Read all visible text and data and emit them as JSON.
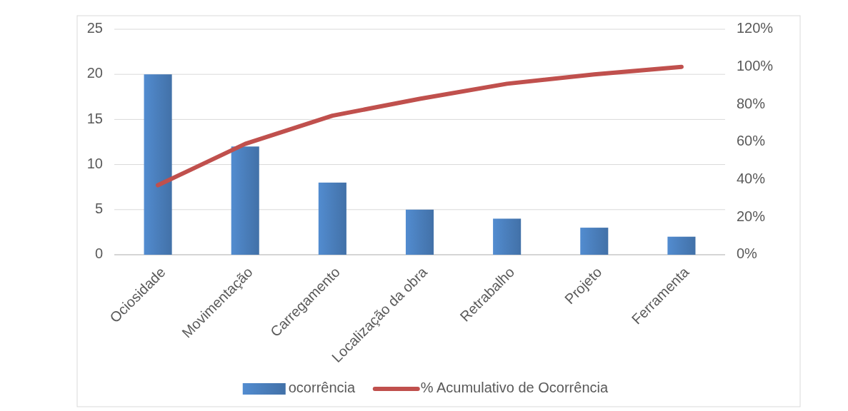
{
  "chart_data": {
    "type": "bar",
    "categories": [
      "Ociosidade",
      "Movimentação",
      "Carregamento",
      "Localização da obra",
      "Retrabalho",
      "Projeto",
      "Ferramenta"
    ],
    "series": [
      {
        "name": "ocorrência",
        "color": "#4a7ebb",
        "values": [
          20,
          12,
          8,
          5,
          4,
          3,
          2
        ]
      },
      {
        "name": "% Acumulativo de Ocorrência",
        "type": "line",
        "axis": "y2",
        "color": "#c0504d",
        "values": [
          37,
          59,
          74,
          83,
          91,
          96,
          100
        ]
      }
    ],
    "ylim": [
      0,
      25
    ],
    "yticks": [
      0,
      5,
      10,
      15,
      20,
      25
    ],
    "y2lim": [
      0,
      120
    ],
    "y2ticks": [
      {
        "value": 0,
        "label": "0%"
      },
      {
        "value": 20,
        "label": "20%"
      },
      {
        "value": 40,
        "label": "40%"
      },
      {
        "value": 60,
        "label": "60%"
      },
      {
        "value": 80,
        "label": "80%"
      },
      {
        "value": 100,
        "label": "100%"
      },
      {
        "value": 120,
        "label": "120%"
      }
    ],
    "grid": "y",
    "legend": "bottom",
    "marker": "none",
    "line_style": "solid"
  }
}
